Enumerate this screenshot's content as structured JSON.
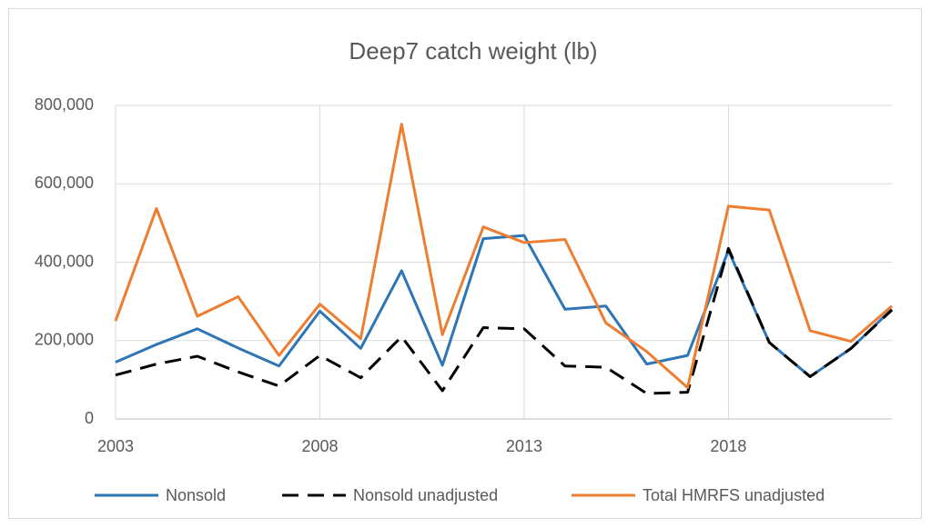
{
  "chart_data": {
    "type": "line",
    "title": "Deep7 catch weight (lb)",
    "x": [
      2003,
      2004,
      2005,
      2006,
      2007,
      2008,
      2009,
      2010,
      2011,
      2012,
      2013,
      2014,
      2015,
      2016,
      2017,
      2018,
      2019,
      2020,
      2021,
      2022
    ],
    "xlim": [
      2003,
      2022
    ],
    "xticks": [
      2003,
      2008,
      2013,
      2018
    ],
    "ylim": [
      0,
      800000
    ],
    "yticks": [
      0,
      {
        "value": 200000,
        "label": "200,000"
      },
      {
        "value": 400000,
        "label": "400,000"
      },
      {
        "value": 600000,
        "label": "600,000"
      },
      {
        "value": 800000,
        "label": "800,000"
      }
    ],
    "grid": true,
    "legend": "bottom",
    "series": [
      {
        "name": "Nonsold",
        "color": "#2e75b6",
        "dash": false,
        "values": [
          145000,
          190000,
          230000,
          181000,
          135000,
          275000,
          180000,
          378000,
          137000,
          460000,
          468000,
          280000,
          288000,
          140000,
          162000,
          430000,
          195000,
          108000,
          180000,
          280000
        ]
      },
      {
        "name": "Nonsold unadjusted",
        "color": "#000000",
        "dash": true,
        "values": [
          112000,
          140000,
          160000,
          120000,
          84000,
          162000,
          105000,
          210000,
          72000,
          233000,
          230000,
          135000,
          132000,
          65000,
          68000,
          435000,
          195000,
          108000,
          180000,
          278000
        ]
      },
      {
        "name": "Total HMRFS unadjusted",
        "color": "#ed7d31",
        "dash": false,
        "values": [
          250000,
          537000,
          262000,
          312000,
          162000,
          293000,
          205000,
          752000,
          215000,
          490000,
          450000,
          458000,
          245000,
          172000,
          80000,
          543000,
          533000,
          225000,
          198000,
          288000
        ]
      }
    ]
  }
}
